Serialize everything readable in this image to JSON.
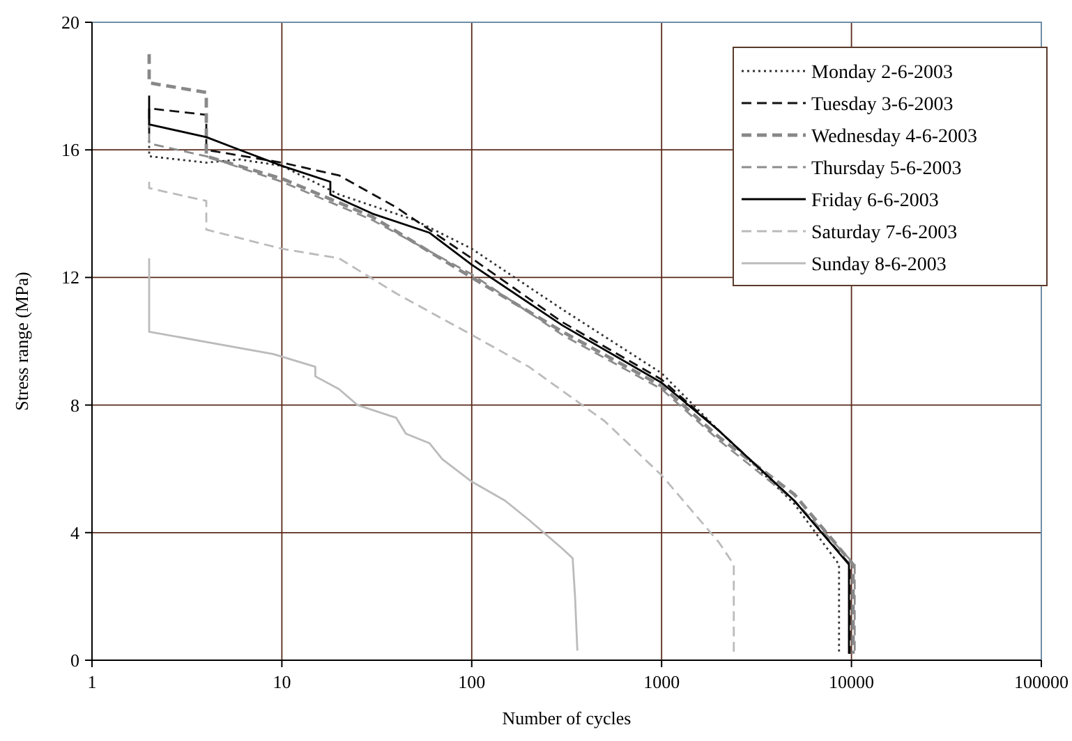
{
  "chart_data": {
    "type": "line",
    "xlabel": "Number of cycles",
    "ylabel": "Stress range (MPa)",
    "log": "x",
    "xlim": [
      1,
      100000
    ],
    "xticks": [
      1,
      10,
      100,
      1000,
      10000,
      100000
    ],
    "ylim": [
      0,
      20
    ],
    "yticks": [
      0,
      4,
      8,
      12,
      16,
      20
    ],
    "grid": true,
    "legend": "top right",
    "series": [
      {
        "name": "Monday 2-6-2003",
        "color": "#333333",
        "line_style": "dotted",
        "x": [
          2,
          2,
          4,
          6,
          10,
          20,
          50,
          100,
          300,
          1000,
          2000,
          5000,
          8600,
          8600
        ],
        "values": [
          16.3,
          15.8,
          15.6,
          15.7,
          15.5,
          14.6,
          13.8,
          12.9,
          11.0,
          9.0,
          7.2,
          4.9,
          3.0,
          0.2
        ]
      },
      {
        "name": "Tuesday 3-6-2003",
        "color": "#111111",
        "line_style": "dashed",
        "x": [
          2,
          2,
          4,
          4,
          10,
          20,
          40,
          100,
          300,
          1000,
          2000,
          5000,
          9800,
          9800
        ],
        "values": [
          16.5,
          17.3,
          17.1,
          16.0,
          15.6,
          15.2,
          14.2,
          12.6,
          10.6,
          8.8,
          7.2,
          5.0,
          3.0,
          0.2
        ]
      },
      {
        "name": "Wednesday 4-6-2003",
        "color": "#888888",
        "line_style": "dashed",
        "x": [
          2,
          2,
          4,
          4,
          10,
          30,
          100,
          300,
          1000,
          2000,
          5000,
          10200,
          10200
        ],
        "values": [
          19.0,
          18.1,
          17.8,
          15.8,
          15.1,
          13.9,
          12.0,
          10.3,
          8.6,
          7.0,
          5.2,
          3.0,
          0.2
        ]
      },
      {
        "name": "Thursday 5-6-2003",
        "color": "#8c8c8c",
        "line_style": "dashed",
        "x": [
          2,
          2,
          4,
          10,
          30,
          100,
          300,
          1000,
          2000,
          5000,
          10400,
          10400
        ],
        "values": [
          17.0,
          16.2,
          15.8,
          15.0,
          13.8,
          12.1,
          10.2,
          8.5,
          6.9,
          5.0,
          3.0,
          0.2
        ]
      },
      {
        "name": "Friday 6-6-2003",
        "color": "#000000",
        "line_style": "solid",
        "x": [
          2,
          2,
          4,
          6,
          10,
          18,
          18,
          30,
          60,
          100,
          300,
          1000,
          2000,
          5000,
          9700,
          9700
        ],
        "values": [
          17.7,
          16.8,
          16.4,
          16.0,
          15.5,
          15.0,
          14.6,
          14.0,
          13.4,
          12.4,
          10.5,
          8.7,
          7.2,
          5.0,
          3.0,
          0.2
        ]
      },
      {
        "name": "Saturday 7-6-2003",
        "color": "#bbbbbb",
        "line_style": "dashed",
        "x": [
          2,
          2,
          4,
          4,
          10,
          20,
          40,
          100,
          200,
          500,
          1000,
          2000,
          2400,
          2400
        ],
        "values": [
          15.0,
          14.8,
          14.4,
          13.5,
          12.9,
          12.6,
          11.5,
          10.2,
          9.2,
          7.5,
          5.8,
          3.7,
          3.0,
          0.2
        ]
      },
      {
        "name": "Sunday 8-6-2003",
        "color": "#bbbbbb",
        "line_style": "solid",
        "x": [
          2,
          2,
          9,
          15,
          15,
          20,
          25,
          40,
          45,
          60,
          70,
          100,
          150,
          200,
          300,
          340,
          350,
          360
        ],
        "values": [
          12.6,
          10.3,
          9.6,
          9.2,
          8.9,
          8.5,
          8.0,
          7.6,
          7.1,
          6.8,
          6.3,
          5.6,
          5.0,
          4.4,
          3.5,
          3.2,
          2.0,
          0.3
        ]
      }
    ]
  }
}
